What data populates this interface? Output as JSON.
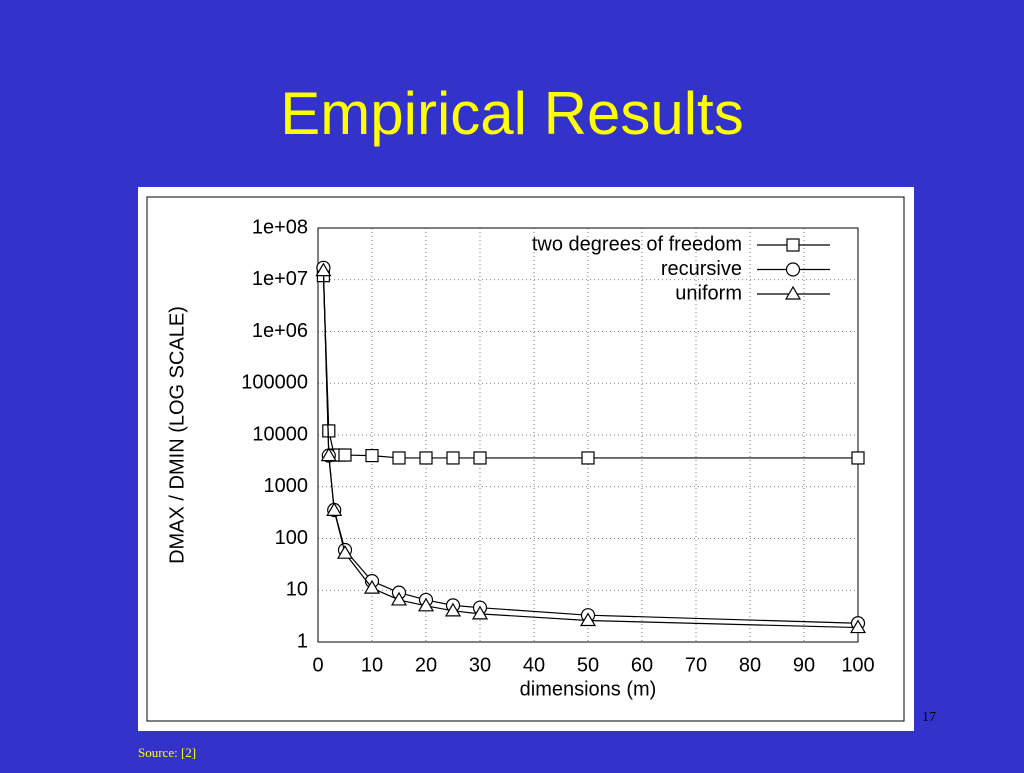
{
  "slide": {
    "title": "Empirical Results",
    "page_number": 17,
    "source": "Source: [2]"
  },
  "chart_data": {
    "type": "line",
    "xlabel": "dimensions (m)",
    "ylabel": "DMAX / DMIN (LOG SCALE)",
    "xlim": [
      0,
      100
    ],
    "xticks": [
      0,
      10,
      20,
      30,
      40,
      50,
      60,
      70,
      80,
      90,
      100
    ],
    "ylim": [
      1,
      100000000
    ],
    "yscale": "log",
    "yticks": [
      1,
      10,
      100,
      1000,
      10000,
      100000,
      {
        "value": 1000000,
        "label": "1e+06"
      },
      {
        "value": 10000000,
        "label": "1e+07"
      },
      {
        "value": 100000000,
        "label": "1e+08"
      }
    ],
    "grid": true,
    "legend": "upper right",
    "series": [
      {
        "name": "two degrees of freedom",
        "color": "#000000",
        "marker": "square",
        "x": [
          1,
          2,
          3,
          4,
          5,
          10,
          15,
          20,
          25,
          30,
          50,
          100
        ],
        "values": [
          12000000,
          12000,
          4100,
          4100,
          4100,
          4000,
          3600,
          3600,
          3600,
          3600,
          3600,
          3600
        ]
      },
      {
        "name": "recursive",
        "color": "#000000",
        "marker": "circle",
        "x": [
          1,
          2,
          3,
          5,
          10,
          15,
          20,
          25,
          30,
          50,
          100
        ],
        "values": [
          17000000,
          4000,
          355,
          60,
          15,
          9,
          6.5,
          5.1,
          4.6,
          3.3,
          2.3
        ]
      },
      {
        "name": "uniform",
        "color": "#000000",
        "marker": "triangle",
        "x": [
          1,
          2,
          3,
          5,
          10,
          15,
          20,
          25,
          30,
          50,
          100
        ],
        "values": [
          15000000,
          4000,
          350,
          52,
          11,
          6.5,
          5,
          4,
          3.5,
          2.6,
          1.9
        ]
      }
    ]
  }
}
